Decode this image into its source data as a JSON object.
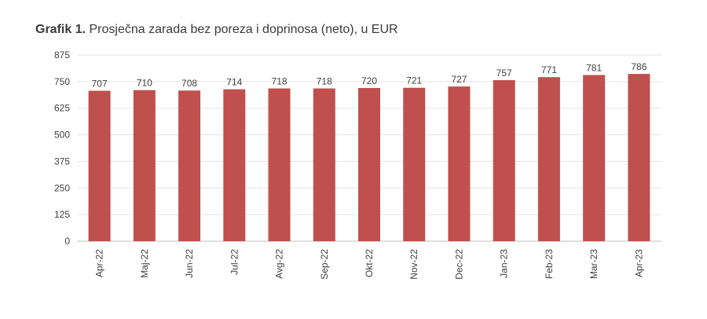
{
  "title": {
    "prefix": "Grafik 1.",
    "text": "Prosječna zarada bez poreza i doprinosa (neto), u EUR"
  },
  "chart_data": {
    "type": "bar",
    "title": "Grafik 1. Prosječna zarada bez poreza i doprinosa (neto), u EUR",
    "xlabel": "",
    "ylabel": "",
    "categories": [
      "Apr-22",
      "Maj-22",
      "Jun-22",
      "Jul-22",
      "Avg-22",
      "Sep-22",
      "Okt-22",
      "Nov-22",
      "Dec-22",
      "Jan-23",
      "Feb-23",
      "Mar-23",
      "Apr-23"
    ],
    "values": [
      707,
      710,
      708,
      714,
      718,
      718,
      720,
      721,
      727,
      757,
      771,
      781,
      786
    ],
    "ylim": [
      0,
      875
    ],
    "yticks": [
      0,
      125,
      250,
      375,
      500,
      625,
      750,
      875
    ],
    "grid": true,
    "legend": "none",
    "bar_color": "#c0504d",
    "data_labels": true
  }
}
